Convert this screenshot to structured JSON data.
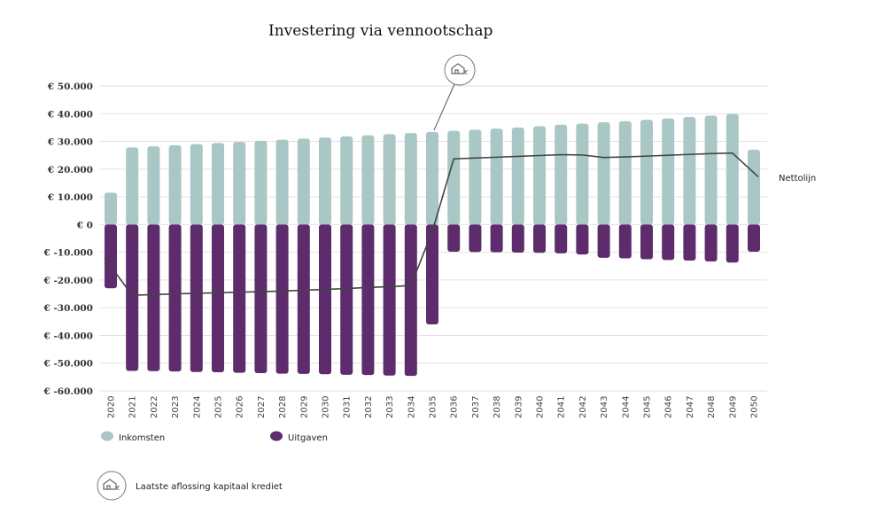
{
  "chart_data": {
    "type": "bar",
    "title": "Investering via vennootschap",
    "y_tick_labels": [
      "€ 50.000",
      "€ 40.000",
      "€ 30.000",
      "€ 20.000",
      "€ 10.000",
      "€ 0",
      "€ -10.000",
      "€ -20.000",
      "€ -30.000",
      "€ -40.000",
      "€ -50.000",
      "€ -60.000"
    ],
    "y_ticks": [
      50000,
      40000,
      30000,
      20000,
      10000,
      0,
      -10000,
      -20000,
      -30000,
      -40000,
      -50000,
      -60000
    ],
    "ylim": [
      -60000,
      50000
    ],
    "grid": true,
    "categories": [
      "2020",
      "2021",
      "2022",
      "2023",
      "2024",
      "2025",
      "2026",
      "2027",
      "2028",
      "2029",
      "2030",
      "2031",
      "2032",
      "2033",
      "2034",
      "2035",
      "2036",
      "2037",
      "2038",
      "2039",
      "2040",
      "2041",
      "2042",
      "2043",
      "2044",
      "2045",
      "2046",
      "2047",
      "2048",
      "2049",
      "2050"
    ],
    "series": [
      {
        "name": "Inkomsten",
        "color": "#a9c7c5",
        "values": [
          11500,
          27800,
          28200,
          28600,
          29000,
          29400,
          29800,
          30200,
          30600,
          31000,
          31400,
          31800,
          32200,
          32600,
          33000,
          33400,
          33800,
          34200,
          34600,
          35000,
          35500,
          36000,
          36400,
          36900,
          37300,
          37800,
          38300,
          38800,
          39300,
          39900,
          27000
        ]
      },
      {
        "name": "Uitgaven",
        "color": "#5e2c6c",
        "values": [
          -23000,
          -52800,
          -52900,
          -53000,
          -53200,
          -53300,
          -53500,
          -53600,
          -53800,
          -53900,
          -54000,
          -54200,
          -54300,
          -54500,
          -54600,
          -36000,
          -9800,
          -9900,
          -10000,
          -10100,
          -10200,
          -10400,
          -10800,
          -12000,
          -12200,
          -12500,
          -12800,
          -13000,
          -13300,
          -13700,
          -9800
        ]
      },
      {
        "name": "Nettolijn",
        "type": "line",
        "color": "#444444",
        "values": [
          -12000,
          -25500,
          -25300,
          -25000,
          -24800,
          -24600,
          -24400,
          -24200,
          -24000,
          -23700,
          -23400,
          -23100,
          -22700,
          -22400,
          -22000,
          -2500,
          23700,
          24000,
          24300,
          24600,
          24900,
          25200,
          25100,
          24200,
          24400,
          24700,
          25000,
          25300,
          25600,
          25800,
          17200
        ]
      }
    ],
    "legend": [
      {
        "label": "Inkomsten",
        "color": "#a9c7c5"
      },
      {
        "label": "Uitgaven",
        "color": "#5e2c6c"
      }
    ],
    "line_label": "Nettolijn",
    "annotation": {
      "label": "Laatste aflossing kapitaal krediet",
      "icon": "house-euro-icon",
      "category": "2035"
    }
  }
}
